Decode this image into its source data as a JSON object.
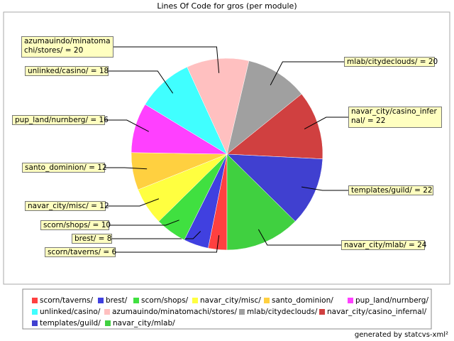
{
  "chart_data": {
    "type": "pie",
    "title": "Lines Of Code for gros (per module)",
    "categories": [
      "scorn/taverns/",
      "brest/",
      "scorn/shops/",
      "navar_city/misc/",
      "santo_dominion/",
      "pup_land/nurnberg/",
      "unlinked/casino/",
      "azumauindo/minatomachi/stores/",
      "mlab/citydeclouds/",
      "navar_city/casino_infernal/",
      "templates/guild/",
      "navar_city/mlab/"
    ],
    "values": [
      6,
      8,
      10,
      12,
      12,
      16,
      18,
      20,
      20,
      22,
      22,
      24
    ],
    "value_labels": [
      "scorn/taverns/ = 6",
      "brest/ = 8",
      "scorn/shops/ = 10",
      "navar_city/misc/ = 12",
      "santo_dominion/ = 12",
      "pup_land/nurnberg/ = 16",
      "unlinked/casino/ = 18",
      "azumauindo/minatomachi/stores/ = 20",
      "mlab/citydeclouds/ = 20",
      "navar_city/casino_infernal/ = 22",
      "templates/guild/ = 22",
      "navar_city/mlab/ = 24"
    ],
    "colors": [
      "#ff4040",
      "#4040e0",
      "#40e040",
      "#ffff40",
      "#ffd040",
      "#ff40ff",
      "#40ffff",
      "#ffc0c0",
      "#a0a0a0",
      "#d04040",
      "#4040d0",
      "#40d040"
    ]
  },
  "footer": "generated by statcvs-xml²"
}
